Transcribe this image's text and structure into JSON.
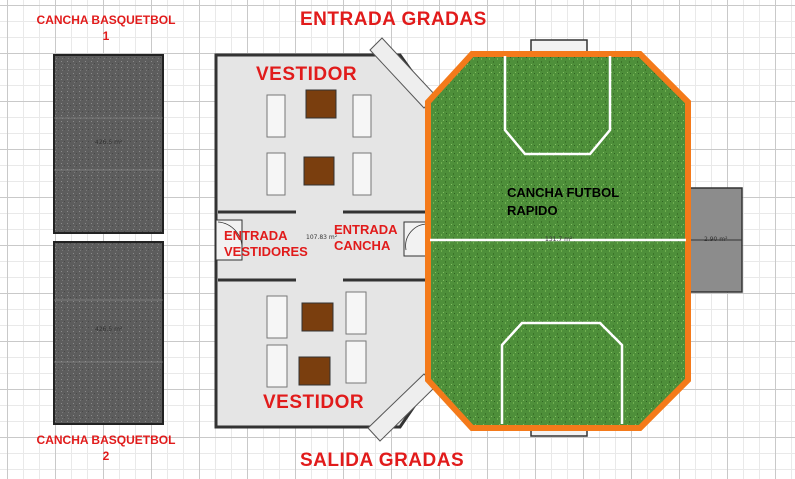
{
  "colors": {
    "label_red": "#e11b1b",
    "field_border": "#f47a1a",
    "grass": "#4e8f3a",
    "court_gray": "#6f6f6f",
    "bench": "#f3f3f3",
    "table": "#7a3e0e"
  },
  "labels": {
    "court_1": "CANCHA BASQUETBOL\n1",
    "court_2": "CANCHA BASQUETBOL\n2",
    "entrada_gradas": "ENTRADA GRADAS",
    "salida_gradas": "SALIDA GRADAS",
    "vestidor_top": "VESTIDOR",
    "vestidor_bottom": "VESTIDOR",
    "entrada_vestidores": "ENTRADA\nVESTIDORES",
    "entrada_cancha": "ENTRADA\nCANCHA",
    "futbol": "CANCHA FUTBOL\nRAPIDO"
  },
  "areas": {
    "court_1": "426.5 m²",
    "court_2": "426.5 m²",
    "building": "107.83 m²",
    "field": "131.7 m²",
    "side": "2.90 m²"
  }
}
